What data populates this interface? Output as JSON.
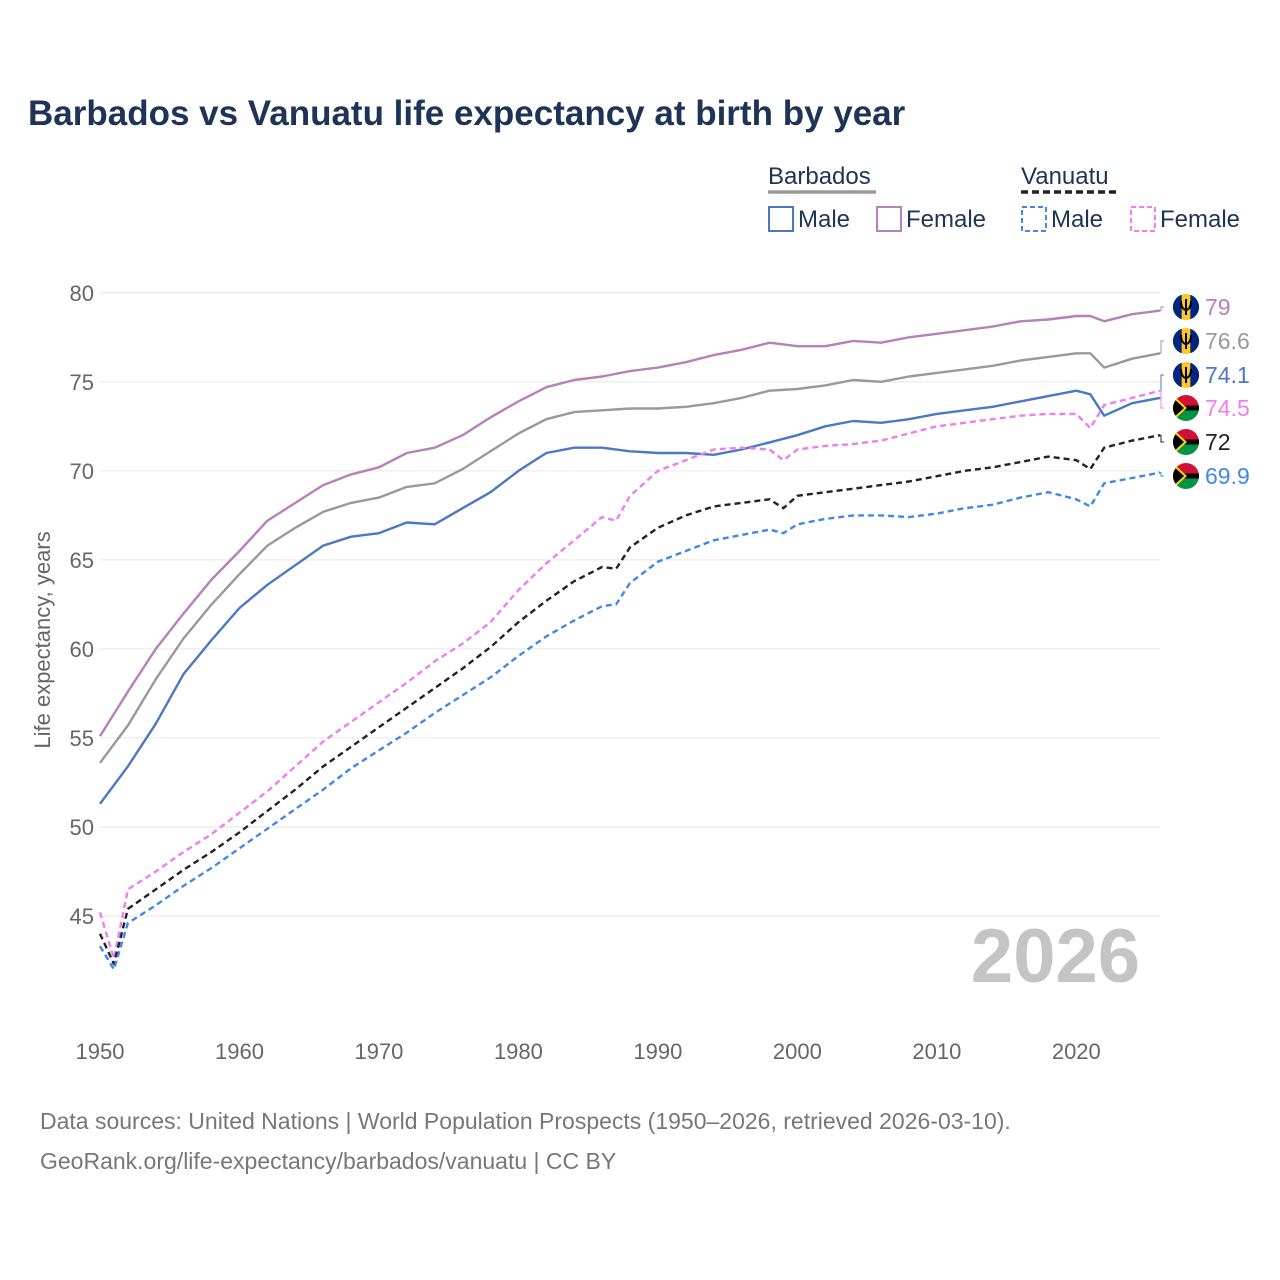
{
  "title": "Barbados vs Vanuatu life expectancy at birth by year",
  "source_line1": "Data sources: United Nations | World Population Prospects (1950–2026, retrieved 2026-03-10).",
  "source_line2": "GeoRank.org/life-expectancy/barbados/vanuatu | CC BY",
  "legend": {
    "groups": [
      {
        "country": "Barbados",
        "line_color": "#999999",
        "dash": false,
        "items": [
          {
            "label": "Male",
            "color": "#4a78c2"
          },
          {
            "label": "Female",
            "color": "#b77fbb"
          }
        ]
      },
      {
        "country": "Vanuatu",
        "line_color": "#222222",
        "dash": true,
        "items": [
          {
            "label": "Male",
            "color": "#3f88e8"
          },
          {
            "label": "Female",
            "color": "#f07cf0"
          }
        ]
      }
    ]
  },
  "colors": {
    "barbados_total": "#999999",
    "barbados_male": "#4a78c2",
    "barbados_female": "#b77fbb",
    "vanuatu_total": "#222222",
    "vanuatu_male": "#3f88e8",
    "vanuatu_female": "#f07cf0",
    "grid": "#e6e6e6",
    "watermark": "#c4c4c4"
  },
  "chart_data": {
    "type": "line",
    "title": "Barbados vs Vanuatu life expectancy at birth by year",
    "xlabel": "",
    "ylabel": "Life expectancy, years",
    "xlim": [
      1950,
      2026
    ],
    "ylim": [
      40,
      81
    ],
    "x_ticks": [
      1950,
      1960,
      1970,
      1980,
      1990,
      2000,
      2010,
      2020
    ],
    "y_ticks": [
      45,
      50,
      55,
      60,
      65,
      70,
      75,
      80
    ],
    "year_label": "2026",
    "series": [
      {
        "key": "barbados_female",
        "name": "Barbados Female",
        "dash": false,
        "end_label": "79",
        "flag": "barbados",
        "points": [
          [
            1950,
            55.1
          ],
          [
            1952,
            57.6
          ],
          [
            1954,
            60.0
          ],
          [
            1956,
            62.0
          ],
          [
            1958,
            63.9
          ],
          [
            1960,
            65.5
          ],
          [
            1962,
            67.2
          ],
          [
            1964,
            68.2
          ],
          [
            1966,
            69.2
          ],
          [
            1968,
            69.8
          ],
          [
            1970,
            70.2
          ],
          [
            1972,
            71.0
          ],
          [
            1974,
            71.3
          ],
          [
            1976,
            72.0
          ],
          [
            1978,
            73.0
          ],
          [
            1980,
            73.9
          ],
          [
            1982,
            74.7
          ],
          [
            1984,
            75.1
          ],
          [
            1986,
            75.3
          ],
          [
            1988,
            75.6
          ],
          [
            1990,
            75.8
          ],
          [
            1992,
            76.1
          ],
          [
            1994,
            76.5
          ],
          [
            1996,
            76.8
          ],
          [
            1998,
            77.2
          ],
          [
            2000,
            77.0
          ],
          [
            2002,
            77.0
          ],
          [
            2004,
            77.3
          ],
          [
            2006,
            77.2
          ],
          [
            2008,
            77.5
          ],
          [
            2010,
            77.7
          ],
          [
            2012,
            77.9
          ],
          [
            2014,
            78.1
          ],
          [
            2016,
            78.4
          ],
          [
            2018,
            78.5
          ],
          [
            2020,
            78.7
          ],
          [
            2021,
            78.7
          ],
          [
            2022,
            78.4
          ],
          [
            2024,
            78.8
          ],
          [
            2026,
            79.0
          ]
        ]
      },
      {
        "key": "barbados_total",
        "name": "Barbados",
        "dash": false,
        "end_label": "76.6",
        "flag": "barbados",
        "points": [
          [
            1950,
            53.6
          ],
          [
            1952,
            55.7
          ],
          [
            1954,
            58.3
          ],
          [
            1956,
            60.6
          ],
          [
            1958,
            62.5
          ],
          [
            1960,
            64.2
          ],
          [
            1962,
            65.8
          ],
          [
            1964,
            66.8
          ],
          [
            1966,
            67.7
          ],
          [
            1968,
            68.2
          ],
          [
            1970,
            68.5
          ],
          [
            1972,
            69.1
          ],
          [
            1974,
            69.3
          ],
          [
            1976,
            70.1
          ],
          [
            1978,
            71.1
          ],
          [
            1980,
            72.1
          ],
          [
            1982,
            72.9
          ],
          [
            1984,
            73.3
          ],
          [
            1986,
            73.4
          ],
          [
            1988,
            73.5
          ],
          [
            1990,
            73.5
          ],
          [
            1992,
            73.6
          ],
          [
            1994,
            73.8
          ],
          [
            1996,
            74.1
          ],
          [
            1998,
            74.5
          ],
          [
            2000,
            74.6
          ],
          [
            2002,
            74.8
          ],
          [
            2004,
            75.1
          ],
          [
            2006,
            75.0
          ],
          [
            2008,
            75.3
          ],
          [
            2010,
            75.5
          ],
          [
            2012,
            75.7
          ],
          [
            2014,
            75.9
          ],
          [
            2016,
            76.2
          ],
          [
            2018,
            76.4
          ],
          [
            2020,
            76.6
          ],
          [
            2021,
            76.6
          ],
          [
            2022,
            75.8
          ],
          [
            2024,
            76.3
          ],
          [
            2026,
            76.6
          ]
        ]
      },
      {
        "key": "barbados_male",
        "name": "Barbados Male",
        "dash": false,
        "end_label": "74.1",
        "flag": "barbados",
        "points": [
          [
            1950,
            51.3
          ],
          [
            1952,
            53.4
          ],
          [
            1954,
            55.8
          ],
          [
            1956,
            58.6
          ],
          [
            1958,
            60.5
          ],
          [
            1960,
            62.3
          ],
          [
            1962,
            63.6
          ],
          [
            1964,
            64.7
          ],
          [
            1966,
            65.8
          ],
          [
            1968,
            66.3
          ],
          [
            1970,
            66.5
          ],
          [
            1972,
            67.1
          ],
          [
            1974,
            67.0
          ],
          [
            1976,
            67.9
          ],
          [
            1978,
            68.8
          ],
          [
            1980,
            70.0
          ],
          [
            1982,
            71.0
          ],
          [
            1984,
            71.3
          ],
          [
            1986,
            71.3
          ],
          [
            1988,
            71.1
          ],
          [
            1990,
            71.0
          ],
          [
            1992,
            71.0
          ],
          [
            1994,
            70.9
          ],
          [
            1996,
            71.2
          ],
          [
            1998,
            71.6
          ],
          [
            2000,
            72.0
          ],
          [
            2002,
            72.5
          ],
          [
            2004,
            72.8
          ],
          [
            2006,
            72.7
          ],
          [
            2008,
            72.9
          ],
          [
            2010,
            73.2
          ],
          [
            2012,
            73.4
          ],
          [
            2014,
            73.6
          ],
          [
            2016,
            73.9
          ],
          [
            2018,
            74.2
          ],
          [
            2020,
            74.5
          ],
          [
            2021,
            74.3
          ],
          [
            2022,
            73.1
          ],
          [
            2024,
            73.8
          ],
          [
            2026,
            74.1
          ]
        ]
      },
      {
        "key": "vanuatu_female",
        "name": "Vanuatu Female",
        "dash": true,
        "end_label": "74.5",
        "flag": "vanuatu",
        "points": [
          [
            1950,
            45.2
          ],
          [
            1951,
            42.6
          ],
          [
            1952,
            46.5
          ],
          [
            1954,
            47.5
          ],
          [
            1956,
            48.6
          ],
          [
            1958,
            49.6
          ],
          [
            1960,
            50.8
          ],
          [
            1962,
            52.0
          ],
          [
            1964,
            53.4
          ],
          [
            1966,
            54.8
          ],
          [
            1968,
            55.9
          ],
          [
            1970,
            57.0
          ],
          [
            1972,
            58.1
          ],
          [
            1974,
            59.3
          ],
          [
            1976,
            60.3
          ],
          [
            1978,
            61.5
          ],
          [
            1980,
            63.3
          ],
          [
            1982,
            64.8
          ],
          [
            1984,
            66.1
          ],
          [
            1986,
            67.4
          ],
          [
            1987,
            67.2
          ],
          [
            1988,
            68.6
          ],
          [
            1990,
            70.0
          ],
          [
            1992,
            70.6
          ],
          [
            1994,
            71.2
          ],
          [
            1996,
            71.3
          ],
          [
            1998,
            71.2
          ],
          [
            1999,
            70.6
          ],
          [
            2000,
            71.2
          ],
          [
            2002,
            71.4
          ],
          [
            2004,
            71.5
          ],
          [
            2006,
            71.7
          ],
          [
            2008,
            72.1
          ],
          [
            2010,
            72.5
          ],
          [
            2012,
            72.7
          ],
          [
            2014,
            72.9
          ],
          [
            2016,
            73.1
          ],
          [
            2018,
            73.2
          ],
          [
            2020,
            73.2
          ],
          [
            2021,
            72.4
          ],
          [
            2022,
            73.7
          ],
          [
            2024,
            74.1
          ],
          [
            2026,
            74.5
          ]
        ]
      },
      {
        "key": "vanuatu_total",
        "name": "Vanuatu",
        "dash": true,
        "end_label": "72",
        "flag": "vanuatu",
        "points": [
          [
            1950,
            44.0
          ],
          [
            1951,
            42.3
          ],
          [
            1952,
            45.4
          ],
          [
            1954,
            46.5
          ],
          [
            1956,
            47.6
          ],
          [
            1958,
            48.6
          ],
          [
            1960,
            49.7
          ],
          [
            1962,
            50.9
          ],
          [
            1964,
            52.1
          ],
          [
            1966,
            53.4
          ],
          [
            1968,
            54.5
          ],
          [
            1970,
            55.6
          ],
          [
            1972,
            56.7
          ],
          [
            1974,
            57.8
          ],
          [
            1976,
            58.9
          ],
          [
            1978,
            60.1
          ],
          [
            1980,
            61.5
          ],
          [
            1982,
            62.7
          ],
          [
            1984,
            63.8
          ],
          [
            1986,
            64.6
          ],
          [
            1987,
            64.5
          ],
          [
            1988,
            65.7
          ],
          [
            1990,
            66.8
          ],
          [
            1992,
            67.5
          ],
          [
            1994,
            68.0
          ],
          [
            1996,
            68.2
          ],
          [
            1998,
            68.4
          ],
          [
            1999,
            67.9
          ],
          [
            2000,
            68.6
          ],
          [
            2002,
            68.8
          ],
          [
            2004,
            69.0
          ],
          [
            2006,
            69.2
          ],
          [
            2008,
            69.4
          ],
          [
            2010,
            69.7
          ],
          [
            2012,
            70.0
          ],
          [
            2014,
            70.2
          ],
          [
            2016,
            70.5
          ],
          [
            2018,
            70.8
          ],
          [
            2020,
            70.6
          ],
          [
            2021,
            70.1
          ],
          [
            2022,
            71.3
          ],
          [
            2024,
            71.7
          ],
          [
            2026,
            72.0
          ]
        ]
      },
      {
        "key": "vanuatu_male",
        "name": "Vanuatu Male",
        "dash": true,
        "end_label": "69.9",
        "flag": "vanuatu",
        "points": [
          [
            1950,
            43.3
          ],
          [
            1951,
            42.0
          ],
          [
            1952,
            44.6
          ],
          [
            1954,
            45.6
          ],
          [
            1956,
            46.7
          ],
          [
            1958,
            47.7
          ],
          [
            1960,
            48.8
          ],
          [
            1962,
            49.9
          ],
          [
            1964,
            51.0
          ],
          [
            1966,
            52.1
          ],
          [
            1968,
            53.3
          ],
          [
            1970,
            54.3
          ],
          [
            1972,
            55.3
          ],
          [
            1974,
            56.4
          ],
          [
            1976,
            57.4
          ],
          [
            1978,
            58.4
          ],
          [
            1980,
            59.6
          ],
          [
            1982,
            60.7
          ],
          [
            1984,
            61.6
          ],
          [
            1986,
            62.4
          ],
          [
            1987,
            62.5
          ],
          [
            1988,
            63.7
          ],
          [
            1990,
            64.9
          ],
          [
            1992,
            65.5
          ],
          [
            1994,
            66.1
          ],
          [
            1996,
            66.4
          ],
          [
            1998,
            66.7
          ],
          [
            1999,
            66.5
          ],
          [
            2000,
            67.0
          ],
          [
            2002,
            67.3
          ],
          [
            2004,
            67.5
          ],
          [
            2006,
            67.5
          ],
          [
            2008,
            67.4
          ],
          [
            2010,
            67.6
          ],
          [
            2012,
            67.9
          ],
          [
            2014,
            68.1
          ],
          [
            2016,
            68.5
          ],
          [
            2018,
            68.8
          ],
          [
            2020,
            68.4
          ],
          [
            2021,
            68.0
          ],
          [
            2022,
            69.3
          ],
          [
            2024,
            69.6
          ],
          [
            2026,
            69.9
          ]
        ]
      }
    ]
  }
}
